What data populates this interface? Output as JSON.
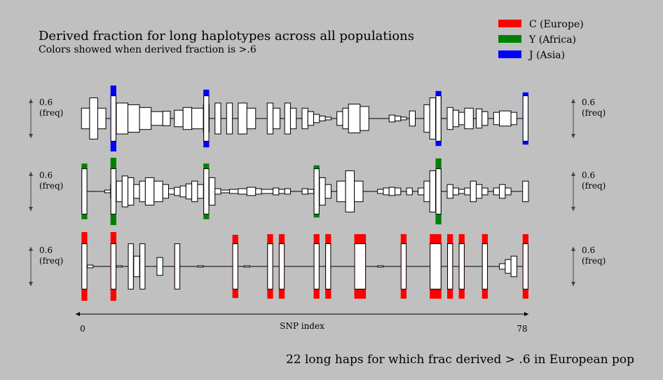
{
  "title": "Derived fraction for long haplotypes across all populations",
  "subtitle": "Colors showed when derived fraction is >.6",
  "footer": "22 long haps for which frac derived > .6 in European pop",
  "legend": [
    {
      "label": "C (Europe)",
      "color": "#ff0000"
    },
    {
      "label": "Y (Africa)",
      "color": "#008000"
    },
    {
      "label": "J (Asia)",
      "color": "#0000ff"
    }
  ],
  "scale_label_value": "0.6",
  "scale_label_unit": "(freq)",
  "chart_data": {
    "type": "bar",
    "xlabel": "SNP index",
    "xlim": [
      0,
      78
    ],
    "x_tick_labels": [
      "0",
      "78"
    ],
    "threshold": 0.6,
    "panels": [
      {
        "name": "J (Asia)",
        "color": "#0000ff",
        "haplotypes": [
          {
            "segments": [
              [
                1.0,
                2.4,
                0.3
              ],
              [
                2.4,
                3.8,
                0.6
              ],
              [
                3.8,
                5.2,
                0.3
              ]
            ]
          },
          {
            "highlight": true,
            "segments": [
              [
                6.0,
                7.0,
                0.96
              ],
              [
                7.0,
                9.0,
                0.45
              ],
              [
                9.0,
                11.0,
                0.4
              ],
              [
                11.0,
                13.0,
                0.32
              ],
              [
                13.0,
                15.0,
                0.2
              ]
            ]
          },
          {
            "segments": [
              [
                15.0,
                16.3,
                0.21
              ]
            ]
          },
          {
            "segments": [
              [
                17.0,
                18.5,
                0.24
              ],
              [
                18.5,
                20.0,
                0.32
              ],
              [
                20.0,
                22.0,
                0.3
              ],
              [
                22.0,
                23.0,
                0.4
              ]
            ]
          },
          {
            "highlight": true,
            "segments": [
              [
                22.0,
                23.0,
                0.84
              ]
            ]
          },
          {
            "segments": [
              [
                24.0,
                25.0,
                0.45
              ]
            ]
          },
          {
            "segments": [
              [
                26.0,
                27.0,
                0.45
              ]
            ]
          },
          {
            "segments": [
              [
                28.0,
                29.5,
                0.45
              ],
              [
                29.5,
                31.0,
                0.3
              ]
            ]
          },
          {
            "segments": [
              [
                33.0,
                34.0,
                0.45
              ],
              [
                34.0,
                35.2,
                0.3
              ]
            ]
          },
          {
            "segments": [
              [
                36.0,
                37.0,
                0.45
              ],
              [
                37.0,
                38.0,
                0.3
              ]
            ]
          },
          {
            "segments": [
              [
                39.0,
                40.0,
                0.3
              ],
              [
                40.0,
                41.0,
                0.2
              ],
              [
                41.0,
                42.0,
                0.12
              ],
              [
                42.0,
                43.0,
                0.07
              ],
              [
                43.0,
                44.0,
                0.04
              ]
            ]
          },
          {
            "segments": [
              [
                45.0,
                46.0,
                0.2
              ],
              [
                46.0,
                47.0,
                0.3
              ],
              [
                47.0,
                49.0,
                0.42
              ],
              [
                49.0,
                50.5,
                0.35
              ]
            ]
          },
          {
            "segments": [
              [
                54.0,
                55.0,
                0.1
              ],
              [
                55.0,
                56.0,
                0.07
              ],
              [
                56.0,
                57.0,
                0.04
              ]
            ]
          },
          {
            "segments": [
              [
                57.5,
                58.5,
                0.22
              ]
            ]
          },
          {
            "segments": [
              [
                60.0,
                61.0,
                0.4
              ],
              [
                61.0,
                62.0,
                0.6
              ]
            ]
          },
          {
            "highlight": true,
            "segments": [
              [
                62.0,
                63.0,
                0.8
              ]
            ]
          },
          {
            "segments": [
              [
                64.0,
                65.0,
                0.32
              ],
              [
                65.0,
                66.0,
                0.24
              ],
              [
                66.0,
                67.0,
                0.18
              ]
            ]
          },
          {
            "segments": [
              [
                67.0,
                68.5,
                0.3
              ]
            ]
          },
          {
            "segments": [
              [
                69.0,
                70.0,
                0.28
              ],
              [
                70.0,
                71.0,
                0.2
              ]
            ]
          },
          {
            "segments": [
              [
                72.0,
                73.0,
                0.18
              ],
              [
                73.0,
                75.0,
                0.22
              ],
              [
                75.0,
                76.0,
                0.18
              ]
            ]
          },
          {
            "highlight": true,
            "segments": [
              [
                77.0,
                78.0,
                0.76
              ]
            ]
          }
        ]
      },
      {
        "name": "Y (Africa)",
        "color": "#008000",
        "haplotypes": [
          {
            "highlight": true,
            "segments": [
              [
                1.0,
                2.0,
                0.81
              ]
            ]
          },
          {
            "segments": [
              [
                5.0,
                6.0,
                0.04
              ],
              [
                6.0,
                7.0,
                0.2
              ]
            ]
          },
          {
            "highlight": true,
            "segments": [
              [
                6.0,
                7.0,
                0.98
              ]
            ]
          },
          {
            "segments": [
              [
                7.0,
                8.0,
                0.3
              ],
              [
                8.0,
                9.0,
                0.45
              ],
              [
                9.0,
                10.0,
                0.4
              ]
            ]
          },
          {
            "segments": [
              [
                10.0,
                11.0,
                0.2
              ],
              [
                11.0,
                12.0,
                0.3
              ],
              [
                12.0,
                13.5,
                0.4
              ],
              [
                13.5,
                15.0,
                0.3
              ],
              [
                15.0,
                16.0,
                0.2
              ]
            ]
          },
          {
            "segments": [
              [
                16.0,
                17.0,
                0.08
              ],
              [
                17.0,
                18.0,
                0.12
              ],
              [
                18.0,
                19.0,
                0.16
              ],
              [
                19.0,
                20.0,
                0.22
              ],
              [
                20.0,
                21.0,
                0.3
              ]
            ]
          },
          {
            "highlight": true,
            "segments": [
              [
                21.0,
                22.0,
                0.2
              ],
              [
                22.0,
                23.0,
                0.81
              ],
              [
                23.0,
                24.0,
                0.4
              ]
            ]
          },
          {
            "segments": [
              [
                24.0,
                25.0,
                0.08
              ],
              [
                25.0,
                26.5,
                0.04
              ],
              [
                26.5,
                28.0,
                0.06
              ]
            ]
          },
          {
            "segments": [
              [
                28.0,
                29.5,
                0.08
              ],
              [
                29.5,
                31.0,
                0.12
              ],
              [
                31.0,
                32.0,
                0.08
              ]
            ]
          },
          {
            "segments": [
              [
                32.0,
                34.0,
                0.06
              ],
              [
                34.0,
                35.0,
                0.1
              ],
              [
                35.0,
                36.0,
                0.06
              ]
            ]
          },
          {
            "segments": [
              [
                36.0,
                37.0,
                0.08
              ]
            ]
          },
          {
            "segments": [
              [
                39.0,
                40.0,
                0.08
              ],
              [
                40.0,
                41.0,
                0.06
              ]
            ]
          },
          {
            "highlight": true,
            "segments": [
              [
                41.0,
                42.0,
                0.76
              ],
              [
                42.0,
                43.0,
                0.4
              ],
              [
                43.0,
                44.0,
                0.2
              ]
            ]
          },
          {
            "segments": [
              [
                45.0,
                46.5,
                0.3
              ],
              [
                46.5,
                48.0,
                0.6
              ],
              [
                48.0,
                49.5,
                0.3
              ]
            ]
          },
          {
            "segments": [
              [
                52.0,
                53.0,
                0.06
              ],
              [
                53.0,
                54.0,
                0.1
              ],
              [
                54.0,
                55.0,
                0.12
              ],
              [
                55.0,
                56.0,
                0.1
              ]
            ]
          },
          {
            "segments": [
              [
                57.0,
                58.0,
                0.1
              ]
            ]
          },
          {
            "segments": [
              [
                59.0,
                60.0,
                0.1
              ],
              [
                60.0,
                61.0,
                0.3
              ],
              [
                61.0,
                62.0,
                0.6
              ]
            ]
          },
          {
            "highlight": true,
            "segments": [
              [
                62.0,
                63.0,
                0.96
              ]
            ]
          },
          {
            "segments": [
              [
                64.0,
                65.0,
                0.2
              ],
              [
                65.0,
                66.0,
                0.1
              ],
              [
                66.0,
                67.0,
                0.06
              ]
            ]
          },
          {
            "segments": [
              [
                67.0,
                68.0,
                0.1
              ],
              [
                68.0,
                69.0,
                0.3
              ],
              [
                69.0,
                70.0,
                0.2
              ],
              [
                70.0,
                71.0,
                0.1
              ]
            ]
          },
          {
            "segments": [
              [
                72.0,
                73.0,
                0.1
              ],
              [
                73.0,
                74.0,
                0.2
              ],
              [
                74.0,
                75.0,
                0.1
              ]
            ]
          },
          {
            "segments": [
              [
                77.0,
                78.0,
                0.3
              ]
            ]
          }
        ]
      },
      {
        "name": "C (Europe)",
        "color": "#ff0000",
        "haplotypes": [
          {
            "highlight": true,
            "segments": [
              [
                1.0,
                2.0,
                1.0
              ]
            ]
          },
          {
            "segments": [
              [
                2.0,
                3.0,
                0.04
              ]
            ]
          },
          {
            "highlight": true,
            "segments": [
              [
                6.0,
                7.0,
                1.0
              ]
            ]
          },
          {
            "segments": [
              [
                7.0,
                8.0,
                0.02
              ]
            ]
          },
          {
            "highlight": true,
            "segments": [
              [
                9.0,
                10.0,
                0.64
              ]
            ]
          },
          {
            "segments": [
              [
                10.0,
                11.0,
                0.3
              ],
              [
                11.0,
                12.0,
                0.64
              ]
            ]
          },
          {
            "segments": [
              [
                14.0,
                15.0,
                0.26
              ]
            ]
          },
          {
            "highlight": true,
            "segments": [
              [
                17.0,
                18.0,
                0.64
              ]
            ]
          },
          {
            "segments": [
              [
                21.0,
                22.0,
                0.02
              ]
            ]
          },
          {
            "highlight": true,
            "segments": [
              [
                27.0,
                28.0,
                0.92
              ]
            ]
          },
          {
            "segments": [
              [
                29.0,
                30.0,
                0.02
              ]
            ]
          },
          {
            "highlight": true,
            "segments": [
              [
                33.0,
                34.0,
                0.94
              ]
            ]
          },
          {
            "highlight": true,
            "segments": [
              [
                35.0,
                36.0,
                0.94
              ]
            ]
          },
          {
            "highlight": true,
            "segments": [
              [
                41.0,
                42.0,
                0.94
              ]
            ]
          },
          {
            "highlight": true,
            "segments": [
              [
                43.0,
                44.0,
                0.94
              ]
            ]
          },
          {
            "highlight": true,
            "segments": [
              [
                48.0,
                50.0,
                0.94
              ]
            ]
          },
          {
            "segments": [
              [
                52.0,
                53.0,
                0.02
              ]
            ]
          },
          {
            "highlight": true,
            "segments": [
              [
                56.0,
                57.0,
                0.94
              ]
            ]
          },
          {
            "highlight": true,
            "segments": [
              [
                61.0,
                63.0,
                0.94
              ]
            ]
          },
          {
            "highlight": true,
            "segments": [
              [
                64.0,
                65.0,
                0.94
              ]
            ]
          },
          {
            "highlight": true,
            "segments": [
              [
                66.0,
                67.0,
                0.94
              ]
            ]
          },
          {
            "highlight": true,
            "segments": [
              [
                70.0,
                71.0,
                0.94
              ]
            ]
          },
          {
            "segments": [
              [
                73.0,
                74.0,
                0.08
              ],
              [
                74.0,
                75.0,
                0.2
              ],
              [
                75.0,
                76.0,
                0.3
              ]
            ]
          },
          {
            "highlight": true,
            "segments": [
              [
                77.0,
                78.0,
                0.94
              ]
            ]
          }
        ]
      }
    ]
  }
}
